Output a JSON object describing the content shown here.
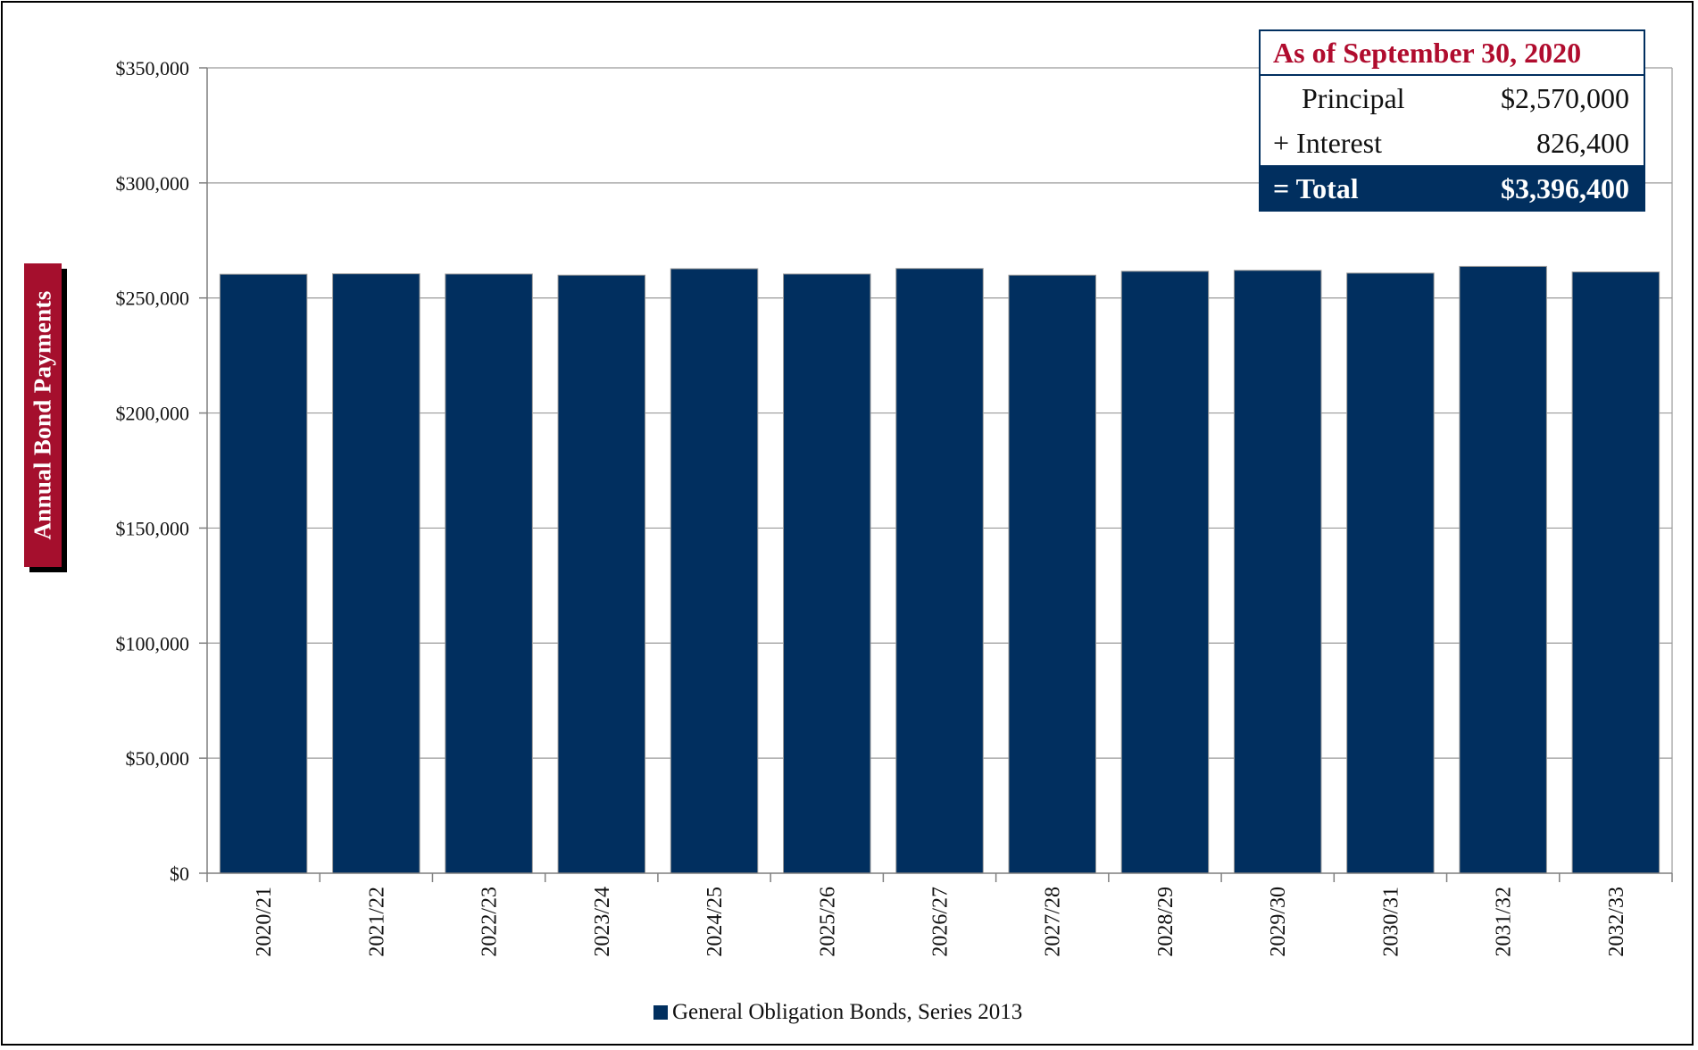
{
  "chart_data": {
    "type": "bar",
    "categories": [
      "2020/21",
      "2021/22",
      "2022/23",
      "2023/24",
      "2024/25",
      "2025/26",
      "2026/27",
      "2027/28",
      "2028/29",
      "2029/30",
      "2030/31",
      "2031/32",
      "2032/33"
    ],
    "series": [
      {
        "name": "General Obligation Bonds, Series 2013",
        "values": [
          260300,
          260500,
          260400,
          259900,
          262700,
          260400,
          262800,
          259900,
          261600,
          262000,
          260800,
          263700,
          261300
        ]
      }
    ],
    "ylabel": "Annual Bond Payments",
    "ylim": [
      0,
      350000
    ],
    "yticks": [
      0,
      50000,
      100000,
      150000,
      200000,
      250000,
      300000,
      350000
    ],
    "ytick_labels": [
      "$0",
      "$50,000",
      "$100,000",
      "$150,000",
      "$200,000",
      "$250,000",
      "$300,000",
      "$350,000"
    ],
    "grid": true,
    "legend_position": "bottom-center",
    "colors": {
      "bar": "#012f5f",
      "accent": "#a50f2d",
      "title": "#b00c2e"
    }
  },
  "summary": {
    "title": "As of September 30, 2020",
    "principal_label": "Principal",
    "principal_value": "$2,570,000",
    "interest_label": "+ Interest",
    "interest_value": "826,400",
    "total_label": "= Total",
    "total_value": "$3,396,400"
  }
}
